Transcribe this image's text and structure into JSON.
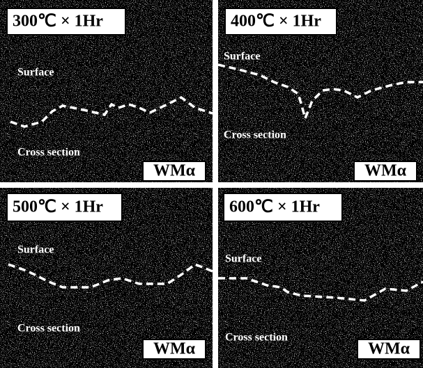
{
  "panels": [
    {
      "title": "300℃ × 1Hr",
      "surface": "Surface",
      "cross_section": "Cross section",
      "element": "WMα"
    },
    {
      "title": "400℃ × 1Hr",
      "surface": "Surface",
      "cross_section": "Cross section",
      "element": "WMα"
    },
    {
      "title": "500℃ × 1Hr",
      "surface": "Surface",
      "cross_section": "Cross section",
      "element": "WMα"
    },
    {
      "title": "600℃ × 1Hr",
      "surface": "Surface",
      "cross_section": "Cross section",
      "element": "WMα"
    }
  ]
}
